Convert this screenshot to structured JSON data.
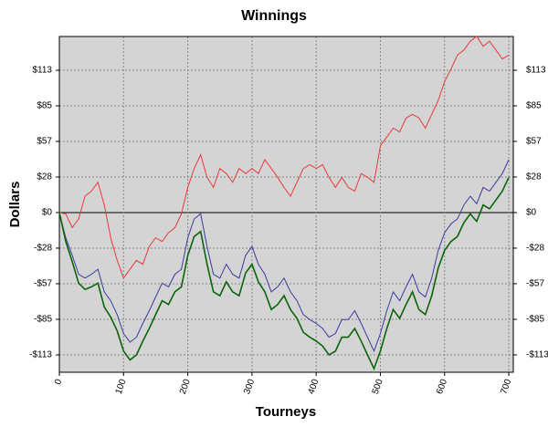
{
  "chart_data": {
    "type": "line",
    "title": "Winnings",
    "x_label": "Tourneys",
    "y_label": "Dollars",
    "x": [
      0,
      10,
      20,
      30,
      40,
      50,
      60,
      70,
      80,
      90,
      100,
      110,
      120,
      130,
      140,
      150,
      160,
      170,
      180,
      190,
      200,
      210,
      220,
      230,
      240,
      250,
      260,
      270,
      280,
      290,
      300,
      310,
      320,
      330,
      340,
      350,
      360,
      370,
      380,
      390,
      400,
      410,
      420,
      430,
      440,
      450,
      460,
      470,
      480,
      490,
      500,
      510,
      520,
      530,
      540,
      550,
      560,
      570,
      580,
      590,
      600,
      610,
      620,
      630,
      640,
      650,
      660,
      670,
      680,
      690,
      700
    ],
    "series": [
      {
        "color": "#e83a3a",
        "values": [
          0,
          -1,
          -12,
          -5,
          13,
          17,
          24,
          6,
          -20,
          -38,
          -52,
          -45,
          -38,
          -41,
          -27,
          -20,
          -23,
          -16,
          -12,
          -1,
          20,
          35,
          46,
          28,
          20,
          35,
          31,
          24,
          35,
          31,
          35,
          31,
          42,
          35,
          28,
          20,
          13,
          24,
          35,
          38,
          35,
          38,
          28,
          20,
          28,
          20,
          17,
          31,
          28,
          24,
          53,
          60,
          67,
          64,
          75,
          78,
          75,
          67,
          78,
          89,
          104,
          114,
          125,
          129,
          136,
          140,
          132,
          136,
          129,
          122,
          125
        ]
      },
      {
        "color": "#3a3aa0",
        "values": [
          0,
          -20,
          -34,
          -49,
          -52,
          -49,
          -45,
          -63,
          -70,
          -81,
          -96,
          -103,
          -99,
          -88,
          -78,
          -67,
          -56,
          -59,
          -49,
          -45,
          -20,
          -5,
          -1,
          -27,
          -49,
          -52,
          -41,
          -49,
          -52,
          -34,
          -27,
          -41,
          -49,
          -63,
          -59,
          -52,
          -63,
          -70,
          -81,
          -85,
          -88,
          -92,
          -99,
          -96,
          -85,
          -85,
          -78,
          -88,
          -99,
          -110,
          -96,
          -78,
          -63,
          -70,
          -59,
          -49,
          -63,
          -67,
          -52,
          -30,
          -16,
          -9,
          -5,
          6,
          13,
          7,
          20,
          17,
          24,
          31,
          42
        ]
      },
      {
        "color": "#0a640a",
        "values": [
          0,
          -23,
          -39,
          -56,
          -61,
          -59,
          -56,
          -75,
          -83,
          -94,
          -110,
          -117,
          -113,
          -102,
          -92,
          -81,
          -70,
          -73,
          -63,
          -59,
          -34,
          -19,
          -15,
          -41,
          -63,
          -66,
          -55,
          -63,
          -66,
          -48,
          -41,
          -55,
          -63,
          -77,
          -73,
          -66,
          -77,
          -84,
          -95,
          -99,
          -102,
          -106,
          -113,
          -110,
          -99,
          -99,
          -92,
          -102,
          -113,
          -124,
          -110,
          -92,
          -77,
          -84,
          -73,
          -63,
          -77,
          -81,
          -66,
          -44,
          -30,
          -23,
          -19,
          -8,
          -1,
          -7,
          6,
          3,
          10,
          17,
          28
        ]
      }
    ],
    "xlim": [
      0,
      707
    ],
    "ylim": [
      -126.8,
      139.8
    ],
    "xticks": [
      0,
      100,
      200,
      300,
      400,
      500,
      600,
      700
    ],
    "yticks": [
      {
        "value": -113,
        "label": "-$113"
      },
      {
        "value": -84.75,
        "label": "-$85"
      },
      {
        "value": -56.5,
        "label": "-$57"
      },
      {
        "value": -28.25,
        "label": "-$28"
      },
      {
        "value": 0,
        "label": "$0"
      },
      {
        "value": 28.25,
        "label": "$28"
      },
      {
        "value": 56.5,
        "label": "$57"
      },
      {
        "value": 84.75,
        "label": "$85"
      },
      {
        "value": 113,
        "label": "$113"
      }
    ],
    "grid": true
  }
}
